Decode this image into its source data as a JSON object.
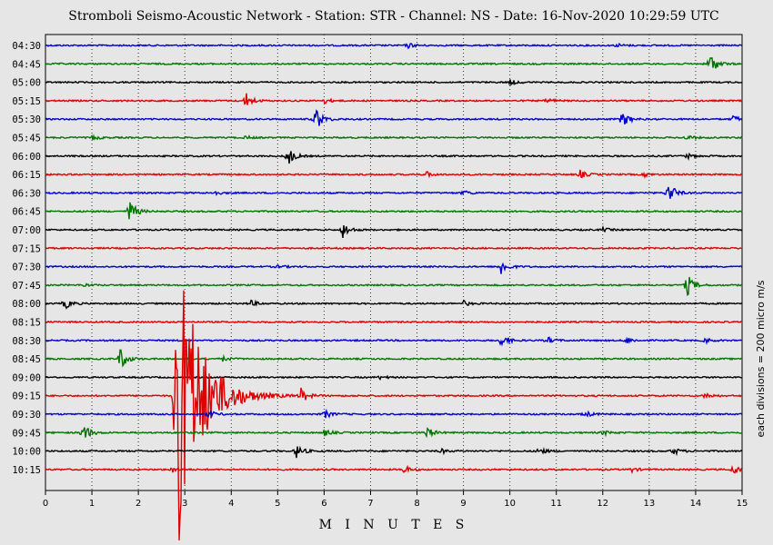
{
  "chart_data": {
    "type": "line",
    "title": "Stromboli Seismo-Acoustic Network - Station: STR - Channel: NS - Date: 16-Nov-2020 10:29:59 UTC",
    "xlabel": "M I N U T E S",
    "side_label": "each divisions = 200 micro m/s",
    "xlim": [
      0,
      15
    ],
    "x_ticks": [
      "0",
      "1",
      "2",
      "3",
      "4",
      "5",
      "6",
      "7",
      "8",
      "9",
      "10",
      "11",
      "12",
      "13",
      "14",
      "15"
    ],
    "grid": true,
    "colors": {
      "black": "#000000",
      "red": "#dd0000",
      "blue": "#0000cc",
      "green": "#007700"
    },
    "rows": [
      {
        "label": "04:30",
        "color": "blue",
        "events": [
          [
            7.8,
            3
          ],
          [
            12.3,
            2
          ]
        ]
      },
      {
        "label": "04:45",
        "color": "green",
        "events": [
          [
            14.3,
            14
          ]
        ]
      },
      {
        "label": "05:00",
        "color": "black",
        "events": [
          [
            10.0,
            3
          ]
        ]
      },
      {
        "label": "05:15",
        "color": "red",
        "events": [
          [
            4.3,
            10
          ],
          [
            6.0,
            3
          ],
          [
            10.8,
            3
          ]
        ]
      },
      {
        "label": "05:30",
        "color": "blue",
        "events": [
          [
            5.8,
            16
          ],
          [
            12.4,
            11
          ],
          [
            14.8,
            4
          ]
        ]
      },
      {
        "label": "05:45",
        "color": "green",
        "events": [
          [
            1.0,
            3
          ],
          [
            4.3,
            2
          ],
          [
            13.8,
            3
          ]
        ]
      },
      {
        "label": "06:00",
        "color": "black",
        "events": [
          [
            5.2,
            12
          ],
          [
            13.8,
            3
          ]
        ]
      },
      {
        "label": "06:15",
        "color": "red",
        "events": [
          [
            8.2,
            3
          ],
          [
            11.5,
            5
          ],
          [
            12.9,
            2
          ]
        ]
      },
      {
        "label": "06:30",
        "color": "blue",
        "events": [
          [
            3.6,
            3
          ],
          [
            9.0,
            3
          ],
          [
            13.4,
            14
          ]
        ]
      },
      {
        "label": "06:45",
        "color": "green",
        "events": [
          [
            1.8,
            14
          ]
        ]
      },
      {
        "label": "07:00",
        "color": "black",
        "events": [
          [
            6.4,
            9
          ],
          [
            12.0,
            2
          ]
        ]
      },
      {
        "label": "07:15",
        "color": "red",
        "events": []
      },
      {
        "label": "07:30",
        "color": "blue",
        "events": [
          [
            9.8,
            10
          ],
          [
            5.0,
            2
          ]
        ]
      },
      {
        "label": "07:45",
        "color": "green",
        "events": [
          [
            13.8,
            14
          ],
          [
            0.8,
            2
          ]
        ]
      },
      {
        "label": "08:00",
        "color": "black",
        "events": [
          [
            0.4,
            7
          ],
          [
            4.4,
            4
          ],
          [
            9.0,
            3
          ]
        ]
      },
      {
        "label": "08:15",
        "color": "red",
        "events": []
      },
      {
        "label": "08:30",
        "color": "blue",
        "events": [
          [
            9.8,
            9
          ],
          [
            10.8,
            4
          ],
          [
            12.5,
            4
          ],
          [
            14.2,
            3
          ]
        ]
      },
      {
        "label": "08:45",
        "color": "green",
        "events": [
          [
            1.6,
            14
          ],
          [
            3.8,
            3
          ]
        ]
      },
      {
        "label": "09:00",
        "color": "black",
        "events": [
          [
            7.2,
            2
          ]
        ]
      },
      {
        "label": "09:15",
        "color": "red",
        "events": [
          [
            2.8,
            190
          ],
          [
            5.5,
            8
          ],
          [
            14.2,
            4
          ]
        ]
      },
      {
        "label": "09:30",
        "color": "blue",
        "events": [
          [
            3.5,
            5
          ],
          [
            6.0,
            5
          ],
          [
            11.6,
            4
          ]
        ]
      },
      {
        "label": "09:45",
        "color": "green",
        "events": [
          [
            0.8,
            12
          ],
          [
            6.0,
            4
          ],
          [
            8.2,
            7
          ],
          [
            12.0,
            3
          ]
        ]
      },
      {
        "label": "10:00",
        "color": "black",
        "events": [
          [
            5.4,
            8
          ],
          [
            8.5,
            3
          ],
          [
            10.6,
            5
          ],
          [
            13.5,
            5
          ]
        ]
      },
      {
        "label": "10:15",
        "color": "red",
        "events": [
          [
            7.7,
            5
          ],
          [
            12.6,
            3
          ],
          [
            14.8,
            7
          ],
          [
            2.7,
            4
          ]
        ]
      }
    ]
  }
}
